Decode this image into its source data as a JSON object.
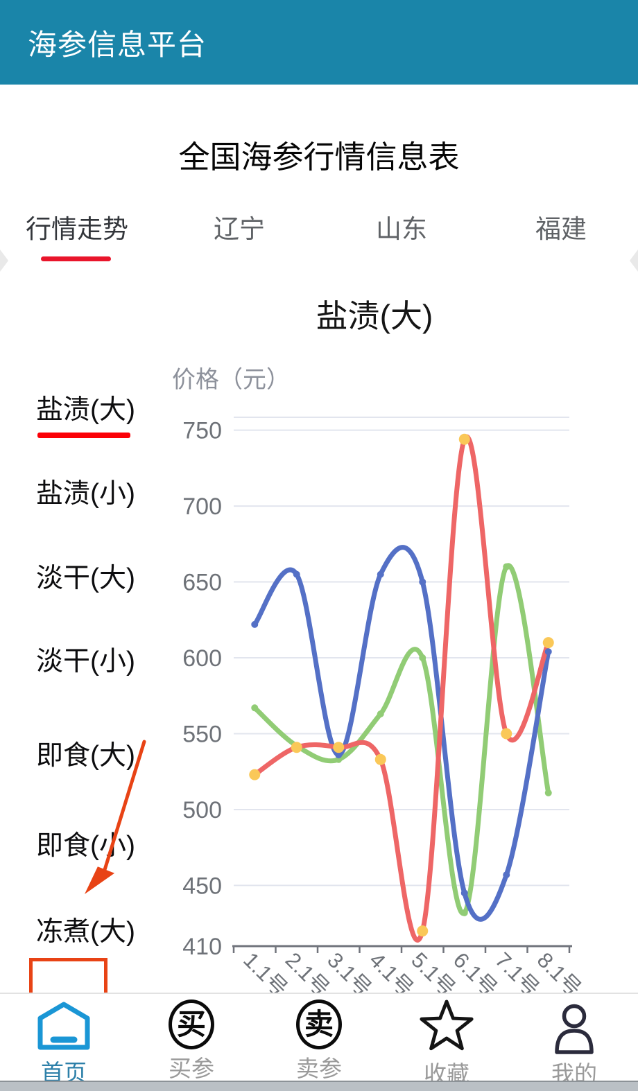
{
  "header": {
    "title": "海参信息平台"
  },
  "page_title": "全国海参行情信息表",
  "tabs": [
    {
      "label": "行情走势",
      "active": true
    },
    {
      "label": "辽宁",
      "active": false
    },
    {
      "label": "山东",
      "active": false
    },
    {
      "label": "福建",
      "active": false
    }
  ],
  "side_menu": [
    {
      "label": "盐渍(大)",
      "active": true
    },
    {
      "label": "盐渍(小)",
      "active": false
    },
    {
      "label": "淡干(大)",
      "active": false
    },
    {
      "label": "淡干(小)",
      "active": false
    },
    {
      "label": "即食(大)",
      "active": false
    },
    {
      "label": "即食(小)",
      "active": false
    },
    {
      "label": "冻煮(大)",
      "active": false
    }
  ],
  "chart_data": {
    "type": "line",
    "title": "盐渍(大)",
    "ylabel": "价格（元）",
    "xlabel": "",
    "categories": [
      "1.1号",
      "2.1号",
      "3.1号",
      "4.1号",
      "5.1号",
      "6.1号",
      "7.1号",
      "8.1号"
    ],
    "y_ticks": [
      750,
      700,
      650,
      600,
      550,
      500,
      450,
      410
    ],
    "ylim": [
      410,
      758
    ],
    "grid": true,
    "smooth": true,
    "legend_position": "none",
    "series": [
      {
        "name": "green",
        "color": "#91cc75",
        "marker": "#91cc75",
        "marker_r": 5,
        "values": [
          567,
          542,
          533,
          563,
          600,
          432,
          660,
          511
        ]
      },
      {
        "name": "blue",
        "color": "#5470c6",
        "marker": "#5470c6",
        "marker_r": 5,
        "values": [
          622,
          655,
          536,
          655,
          650,
          445,
          457,
          604
        ]
      },
      {
        "name": "red",
        "color": "#ee6666",
        "marker": "#fac858",
        "marker_r": 8,
        "values": [
          523,
          541,
          541,
          533,
          420,
          744,
          550,
          610
        ]
      }
    ]
  },
  "bottom_nav": [
    {
      "label": "首页",
      "icon": "home-icon",
      "active": true
    },
    {
      "label": "买参",
      "icon": "buy-circle-icon",
      "glyph": "买",
      "active": false
    },
    {
      "label": "卖参",
      "icon": "sell-circle-icon",
      "glyph": "卖",
      "active": false
    },
    {
      "label": "收藏",
      "icon": "star-icon",
      "active": false
    },
    {
      "label": "我的",
      "icon": "user-icon",
      "active": false
    }
  ],
  "colors": {
    "header_bg": "#1a85a9",
    "tab_underline": "#e9152b",
    "menu_underline": "#fb0007",
    "annotation_red": "#e84315",
    "nav_active_icon": "#1a96d5",
    "nav_active_label": "#2d80a9",
    "nav_inactive": "#9a9a9a",
    "axis_label": "#6e7278",
    "grid_line": "#e2e5ee"
  }
}
